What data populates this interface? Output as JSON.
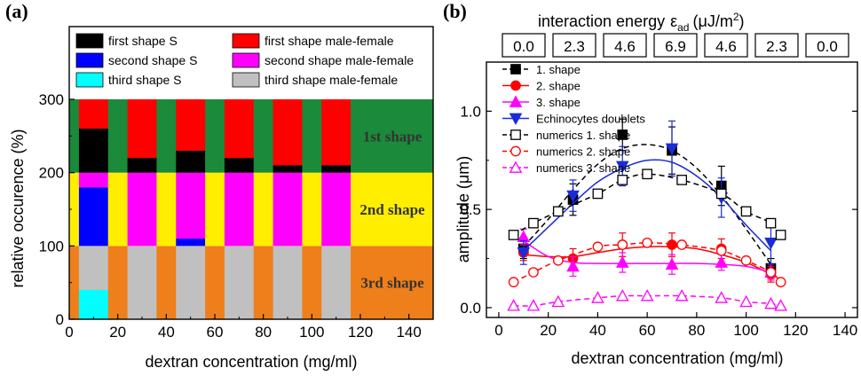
{
  "chart_data": [
    {
      "panel": "(a)",
      "type": "bar",
      "xlabel": "dextran concentration (mg/ml)",
      "ylabel": "relative occurence (%)",
      "xlim": [
        0,
        150
      ],
      "ylim": [
        0,
        300
      ],
      "xticks": [
        0,
        20,
        40,
        60,
        80,
        100,
        120,
        140
      ],
      "yticks": [
        0,
        100,
        200,
        300
      ],
      "bands": [
        {
          "label": "3rd shape",
          "from": 0,
          "to": 100,
          "color": "#ef7f1a"
        },
        {
          "label": "2nd shape",
          "from": 100,
          "to": 200,
          "color": "#ffee00"
        },
        {
          "label": "1st shape",
          "from": 200,
          "to": 300,
          "color": "#1b8a3a"
        }
      ],
      "categories": [
        10,
        30,
        50,
        70,
        90,
        110
      ],
      "series": [
        {
          "name": "third shape S",
          "band": 0,
          "color": "#00ffff",
          "values": [
            40,
            0,
            0,
            0,
            0,
            0
          ]
        },
        {
          "name": "third shape male-female",
          "band": 0,
          "color": "#c0c0c0",
          "values": [
            60,
            100,
            100,
            100,
            100,
            100
          ]
        },
        {
          "name": "second shape S",
          "band": 1,
          "color": "#0000ff",
          "values": [
            80,
            0,
            10,
            0,
            0,
            0
          ]
        },
        {
          "name": "second shape male-female",
          "band": 1,
          "color": "#ff00ff",
          "values": [
            20,
            100,
            90,
            100,
            100,
            100
          ]
        },
        {
          "name": "first shape S",
          "band": 2,
          "color": "#000000",
          "values": [
            60,
            20,
            30,
            20,
            10,
            10
          ]
        },
        {
          "name": "first shape male-female",
          "band": 2,
          "color": "#ff0000",
          "values": [
            40,
            80,
            70,
            80,
            90,
            90
          ]
        }
      ],
      "legend_order": [
        "first shape S",
        "first shape male-female",
        "second shape S",
        "second shape male-female",
        "third shape S",
        "third shape male-female"
      ]
    },
    {
      "panel": "(b)",
      "type": "line",
      "xlabel": "dextran concentration (mg/ml)",
      "ylabel": "amplitude (μm)",
      "xlim": [
        -5,
        145
      ],
      "ylim": [
        -0.05,
        1.25
      ],
      "xticks": [
        0,
        20,
        40,
        60,
        80,
        100,
        120,
        140
      ],
      "yticks": [
        0.0,
        0.5,
        1.0
      ],
      "ytick_labels": [
        "0.0",
        "0.5",
        "1.0"
      ],
      "top_axis": {
        "label_main": "interaction energy",
        "label_symbol": "ε",
        "label_sub": "ad",
        "label_unit_open": "(μJ/m",
        "label_unit_sup": "2",
        "label_unit_close": ")",
        "values": [
          "0.0",
          "2.3",
          "4.6",
          "6.9",
          "4.6",
          "2.3",
          "0.0"
        ]
      },
      "series": [
        {
          "name": "1. shape",
          "color": "#000000",
          "marker": "square-filled",
          "dash": true,
          "x": [
            10,
            30,
            50,
            70,
            90,
            110
          ],
          "y": [
            0.3,
            0.55,
            0.88,
            0.8,
            0.62,
            0.2
          ],
          "err": [
            0.05,
            0.08,
            0.08,
            0.12,
            0.1,
            0.05
          ],
          "fit_x": [
            10,
            20,
            30,
            40,
            50,
            60,
            70,
            80,
            90,
            100,
            110
          ],
          "fit_y": [
            0.31,
            0.45,
            0.6,
            0.73,
            0.81,
            0.83,
            0.8,
            0.71,
            0.57,
            0.4,
            0.22
          ]
        },
        {
          "name": "2. shape",
          "color": "#ff0000",
          "marker": "circle-filled",
          "dash": false,
          "x": [
            10,
            30,
            50,
            70,
            90,
            110
          ],
          "y": [
            0.28,
            0.25,
            0.32,
            0.32,
            0.3,
            0.17
          ],
          "err": [
            0.04,
            0.05,
            0.06,
            0.06,
            0.05,
            0.04
          ],
          "fit_x": [
            10,
            20,
            30,
            40,
            50,
            60,
            70,
            80,
            90,
            100,
            110
          ],
          "fit_y": [
            0.27,
            0.26,
            0.26,
            0.28,
            0.3,
            0.31,
            0.31,
            0.3,
            0.27,
            0.23,
            0.17
          ]
        },
        {
          "name": "3. shape",
          "color": "#ff00ff",
          "marker": "triangle-filled",
          "dash": false,
          "x": [
            10,
            30,
            50,
            70,
            90,
            110
          ],
          "y": [
            0.36,
            0.21,
            0.23,
            0.22,
            0.23,
            0.18
          ],
          "err": [
            0.04,
            0.05,
            0.05,
            0.05,
            0.04,
            0.04
          ],
          "fit_x": [
            10,
            20,
            30,
            40,
            50,
            60,
            70,
            80,
            90,
            100,
            110
          ],
          "fit_y": [
            0.34,
            0.26,
            0.23,
            0.225,
            0.225,
            0.225,
            0.225,
            0.225,
            0.22,
            0.21,
            0.18
          ]
        },
        {
          "name": "Echinocytes doublets",
          "color": "#1a2bd8",
          "marker": "triangle-down-filled",
          "dash": false,
          "x": [
            10,
            30,
            50,
            70,
            90,
            110
          ],
          "y": [
            0.28,
            0.57,
            0.72,
            0.81,
            0.56,
            0.33
          ],
          "err": [
            0.06,
            0.08,
            0.1,
            0.14,
            0.1,
            0.11
          ],
          "fit_x": [
            10,
            20,
            30,
            40,
            50,
            60,
            70,
            80,
            90,
            100,
            110
          ],
          "fit_y": [
            0.29,
            0.41,
            0.53,
            0.64,
            0.71,
            0.75,
            0.74,
            0.67,
            0.56,
            0.42,
            0.29
          ]
        },
        {
          "name": "numerics 1. shape",
          "color": "#000000",
          "marker": "square-open",
          "dash": true,
          "x": [
            6,
            14,
            24,
            40,
            50,
            60,
            74,
            90,
            100,
            110,
            114
          ],
          "y": [
            0.37,
            0.43,
            0.49,
            0.58,
            0.65,
            0.68,
            0.65,
            0.58,
            0.49,
            0.43,
            0.37
          ]
        },
        {
          "name": "numerics 2. shape",
          "color": "#ff0000",
          "marker": "circle-open",
          "dash": true,
          "x": [
            6,
            14,
            24,
            40,
            50,
            60,
            74,
            90,
            100,
            110,
            114
          ],
          "y": [
            0.13,
            0.18,
            0.24,
            0.31,
            0.32,
            0.33,
            0.32,
            0.29,
            0.24,
            0.18,
            0.13
          ]
        },
        {
          "name": "numerics 3. shape",
          "color": "#ff00ff",
          "marker": "triangle-open",
          "dash": true,
          "x": [
            6,
            14,
            24,
            40,
            50,
            60,
            74,
            90,
            100,
            110,
            114
          ],
          "y": [
            0.01,
            0.01,
            0.03,
            0.05,
            0.06,
            0.06,
            0.06,
            0.05,
            0.03,
            0.02,
            0.01
          ]
        }
      ]
    }
  ]
}
